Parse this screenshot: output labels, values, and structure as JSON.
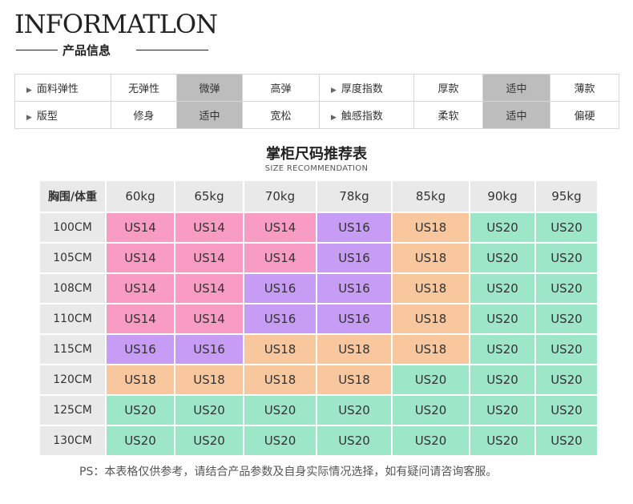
{
  "header": {
    "title": "INFORMATLON",
    "subtitle": "产品信息"
  },
  "attributes": {
    "rows": [
      {
        "label1": "面料弹性",
        "opts1": [
          "无弹性",
          "微弹",
          "高弹"
        ],
        "selected1": 1,
        "label2": "厚度指数",
        "opts2": [
          "厚款",
          "适中",
          "薄款"
        ],
        "selected2": 1
      },
      {
        "label1": "版型",
        "opts1": [
          "修身",
          "适中",
          "宽松"
        ],
        "selected1": 1,
        "label2": "触感指数",
        "opts2": [
          "柔软",
          "适中",
          "偏硬"
        ],
        "selected2": 1
      }
    ]
  },
  "size_table": {
    "title": "掌柜尺码推荐表",
    "subtitle": "SIZE RECOMMENDATION",
    "corner": "胸围/体重",
    "weights": [
      "60kg",
      "65kg",
      "70kg",
      "78kg",
      "85kg",
      "90kg",
      "95kg"
    ],
    "rows": [
      {
        "chest": "100CM",
        "sizes": [
          "US14",
          "US14",
          "US14",
          "US16",
          "US18",
          "US20",
          "US20"
        ]
      },
      {
        "chest": "105CM",
        "sizes": [
          "US14",
          "US14",
          "US14",
          "US16",
          "US18",
          "US20",
          "US20"
        ]
      },
      {
        "chest": "108CM",
        "sizes": [
          "US14",
          "US14",
          "US16",
          "US16",
          "US18",
          "US20",
          "US20"
        ]
      },
      {
        "chest": "110CM",
        "sizes": [
          "US14",
          "US14",
          "US16",
          "US16",
          "US18",
          "US20",
          "US20"
        ]
      },
      {
        "chest": "115CM",
        "sizes": [
          "US16",
          "US16",
          "US18",
          "US18",
          "US18",
          "US20",
          "US20"
        ]
      },
      {
        "chest": "120CM",
        "sizes": [
          "US18",
          "US18",
          "US18",
          "US18",
          "US20",
          "US20",
          "US20"
        ]
      },
      {
        "chest": "125CM",
        "sizes": [
          "US20",
          "US20",
          "US20",
          "US20",
          "US20",
          "US20",
          "US20"
        ]
      },
      {
        "chest": "130CM",
        "sizes": [
          "US20",
          "US20",
          "US20",
          "US20",
          "US20",
          "US20",
          "US20"
        ]
      }
    ],
    "colors": {
      "US14": "#f99cc4",
      "US16": "#c79cf5",
      "US18": "#f9c79e",
      "US20": "#9ee6c8"
    }
  },
  "note": "PS：本表格仅供参考，请结合产品参数及自身实际情况选择，如有疑问请咨询客服。"
}
